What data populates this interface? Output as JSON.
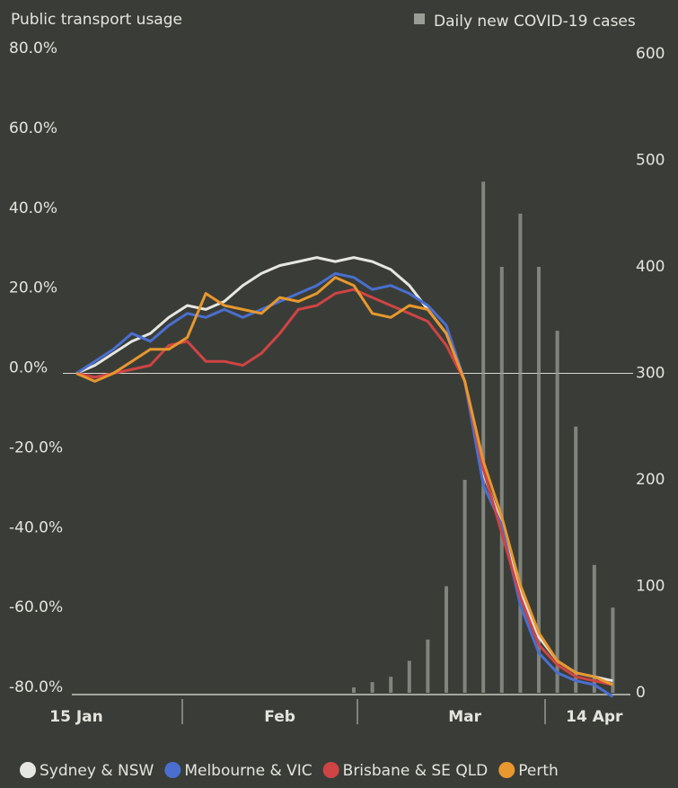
{
  "chart_data": {
    "type": "line",
    "title": "Public transport usage",
    "categories": [
      "15 Jan",
      null,
      null,
      null,
      null,
      null,
      null,
      null,
      null,
      null,
      null,
      "Feb",
      null,
      null,
      null,
      null,
      null,
      null,
      null,
      null,
      null,
      "Mar",
      null,
      null,
      null,
      null,
      null,
      null,
      "14 Apr",
      null
    ],
    "series": [
      {
        "name": "Daily new COVID-19 cases",
        "type": "bar",
        "axis": "y2",
        "color": "#9a9c96",
        "values": [
          0,
          0,
          0,
          0,
          0,
          0,
          0,
          0,
          0,
          0,
          0,
          0,
          0,
          0,
          0,
          5,
          10,
          15,
          30,
          50,
          100,
          200,
          480,
          400,
          450,
          400,
          340,
          250,
          120,
          80
        ]
      },
      {
        "name": "Sydney & NSW",
        "color": "#e6e6e2",
        "values": [
          0,
          2,
          5,
          8,
          10,
          14,
          17,
          16,
          18,
          22,
          25,
          27,
          28,
          29,
          28,
          29,
          28,
          26,
          22,
          16,
          10,
          -2,
          -25,
          -38,
          -55,
          -66,
          -72,
          -75,
          -76,
          -77
        ]
      },
      {
        "name": "Melbourne & VIC",
        "color": "#4a6fd0",
        "values": [
          0,
          3,
          6,
          10,
          8,
          12,
          15,
          14,
          16,
          14,
          16,
          18,
          20,
          22,
          25,
          24,
          21,
          22,
          20,
          17,
          12,
          -2,
          -28,
          -38,
          -58,
          -70,
          -75,
          -77,
          -78,
          -81
        ]
      },
      {
        "name": "Brisbane & SE QLD",
        "color": "#cf4444",
        "values": [
          0,
          -1,
          0,
          1,
          2,
          7,
          8,
          3,
          3,
          2,
          5,
          10,
          16,
          17,
          20,
          21,
          19,
          17,
          15,
          13,
          7,
          -2,
          -24,
          -40,
          -56,
          -68,
          -73,
          -76,
          -77,
          -78
        ]
      },
      {
        "name": "Perth",
        "color": "#e8982e",
        "values": [
          0,
          -2,
          0,
          3,
          6,
          6,
          9,
          20,
          17,
          16,
          15,
          19,
          18,
          20,
          24,
          22,
          15,
          14,
          17,
          16,
          10,
          -2,
          -22,
          -36,
          -53,
          -65,
          -72,
          -75,
          -76,
          -78
        ]
      }
    ],
    "ylim": [
      -80,
      80
    ],
    "yticks": [
      {
        "value": 80,
        "label": "80.0%"
      },
      {
        "value": 60,
        "label": "60.0%"
      },
      {
        "value": 40,
        "label": "40.0%"
      },
      {
        "value": 20,
        "label": "20.0%"
      },
      {
        "value": 0,
        "label": "0.0%"
      },
      {
        "value": -20,
        "label": "-20.0%"
      },
      {
        "value": -40,
        "label": "-40.0%"
      },
      {
        "value": -60,
        "label": "-60.0%"
      },
      {
        "value": -80,
        "label": "-80.0%"
      }
    ],
    "y2lim": [
      0,
      600
    ],
    "y2ticks": [
      600,
      500,
      400,
      300,
      200,
      100,
      0
    ],
    "zero_line": true
  }
}
